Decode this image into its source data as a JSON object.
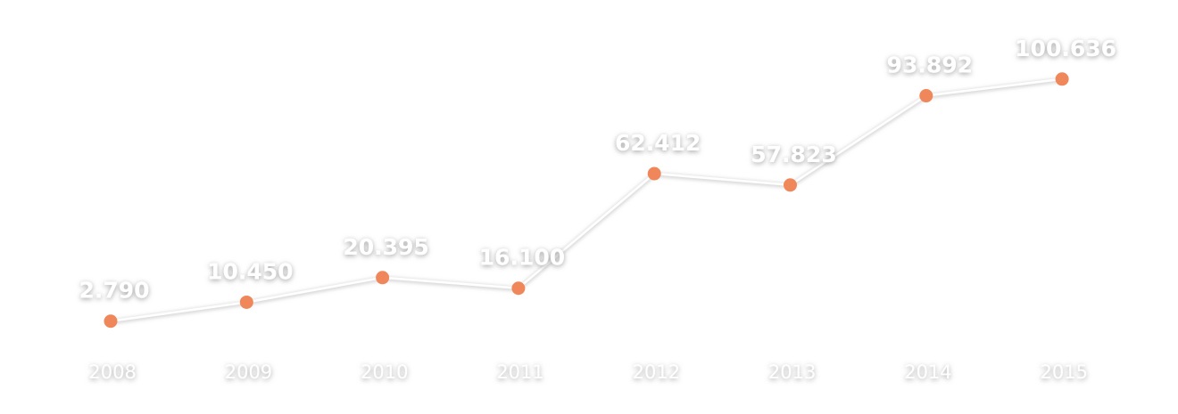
{
  "chart_data": {
    "type": "line",
    "categories": [
      "2008",
      "2009",
      "2010",
      "2011",
      "2012",
      "2013",
      "2014",
      "2015"
    ],
    "series": [
      {
        "values": [
          2790,
          10450,
          20395,
          16100,
          62412,
          57823,
          93892,
          100636
        ],
        "labels": [
          "2.790",
          "10.450",
          "20.395",
          "16.100",
          "62.412",
          "57.823",
          "93.892",
          "100.636"
        ]
      }
    ],
    "ylim": [
      0,
      100636
    ],
    "grid": false,
    "legend": "none",
    "colors": {
      "line": "#ffffff",
      "point": "#f0875a",
      "axis": "#ffffff",
      "text": "#ffffff",
      "shadow": "#9a9a9a"
    }
  }
}
